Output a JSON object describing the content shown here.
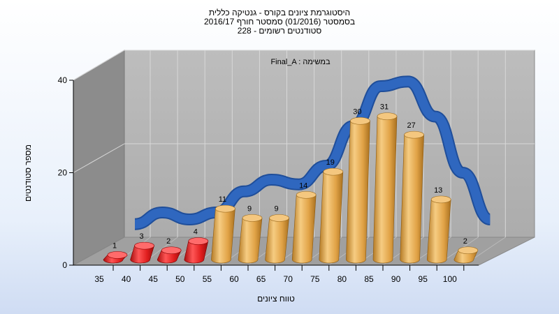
{
  "chart_data": {
    "type": "bar",
    "title_lines": [
      "היסטוגרמת ציונים בקורס - גנטיקה כללית",
      "בסמסטר  (01/2016)  סמסטר חורף 2016/17",
      "סטודנטים רשומים - 228"
    ],
    "annotation": "Final_A : במשימה",
    "xlabel": "טווח ציונים",
    "ylabel": "מספר סטודנטים",
    "categories": [
      "35",
      "40",
      "45",
      "50",
      "55",
      "60",
      "65",
      "70",
      "75",
      "80",
      "85",
      "90",
      "95",
      "100"
    ],
    "values": [
      1,
      3,
      2,
      4,
      11,
      9,
      9,
      14,
      19,
      30,
      31,
      27,
      13,
      2
    ],
    "failing_categories": [
      "35",
      "40",
      "45",
      "50"
    ],
    "ylim": [
      0,
      40
    ],
    "yticks": [
      0,
      20,
      40
    ],
    "grid": true,
    "curve_y": [
      4.0,
      6.5,
      5.0,
      6.5,
      11.0,
      13.5,
      12.5,
      16.5,
      25.0,
      33.5,
      34.5,
      27.0,
      15.0,
      5.0
    ],
    "colors": {
      "pass_bar": "#e3a447",
      "fail_bar": "#e01e1e",
      "curve": "#2f67bf",
      "wall": "#b3b3b3",
      "side_wall": "#8c8c8c",
      "floor": "#a0a0a0"
    }
  }
}
